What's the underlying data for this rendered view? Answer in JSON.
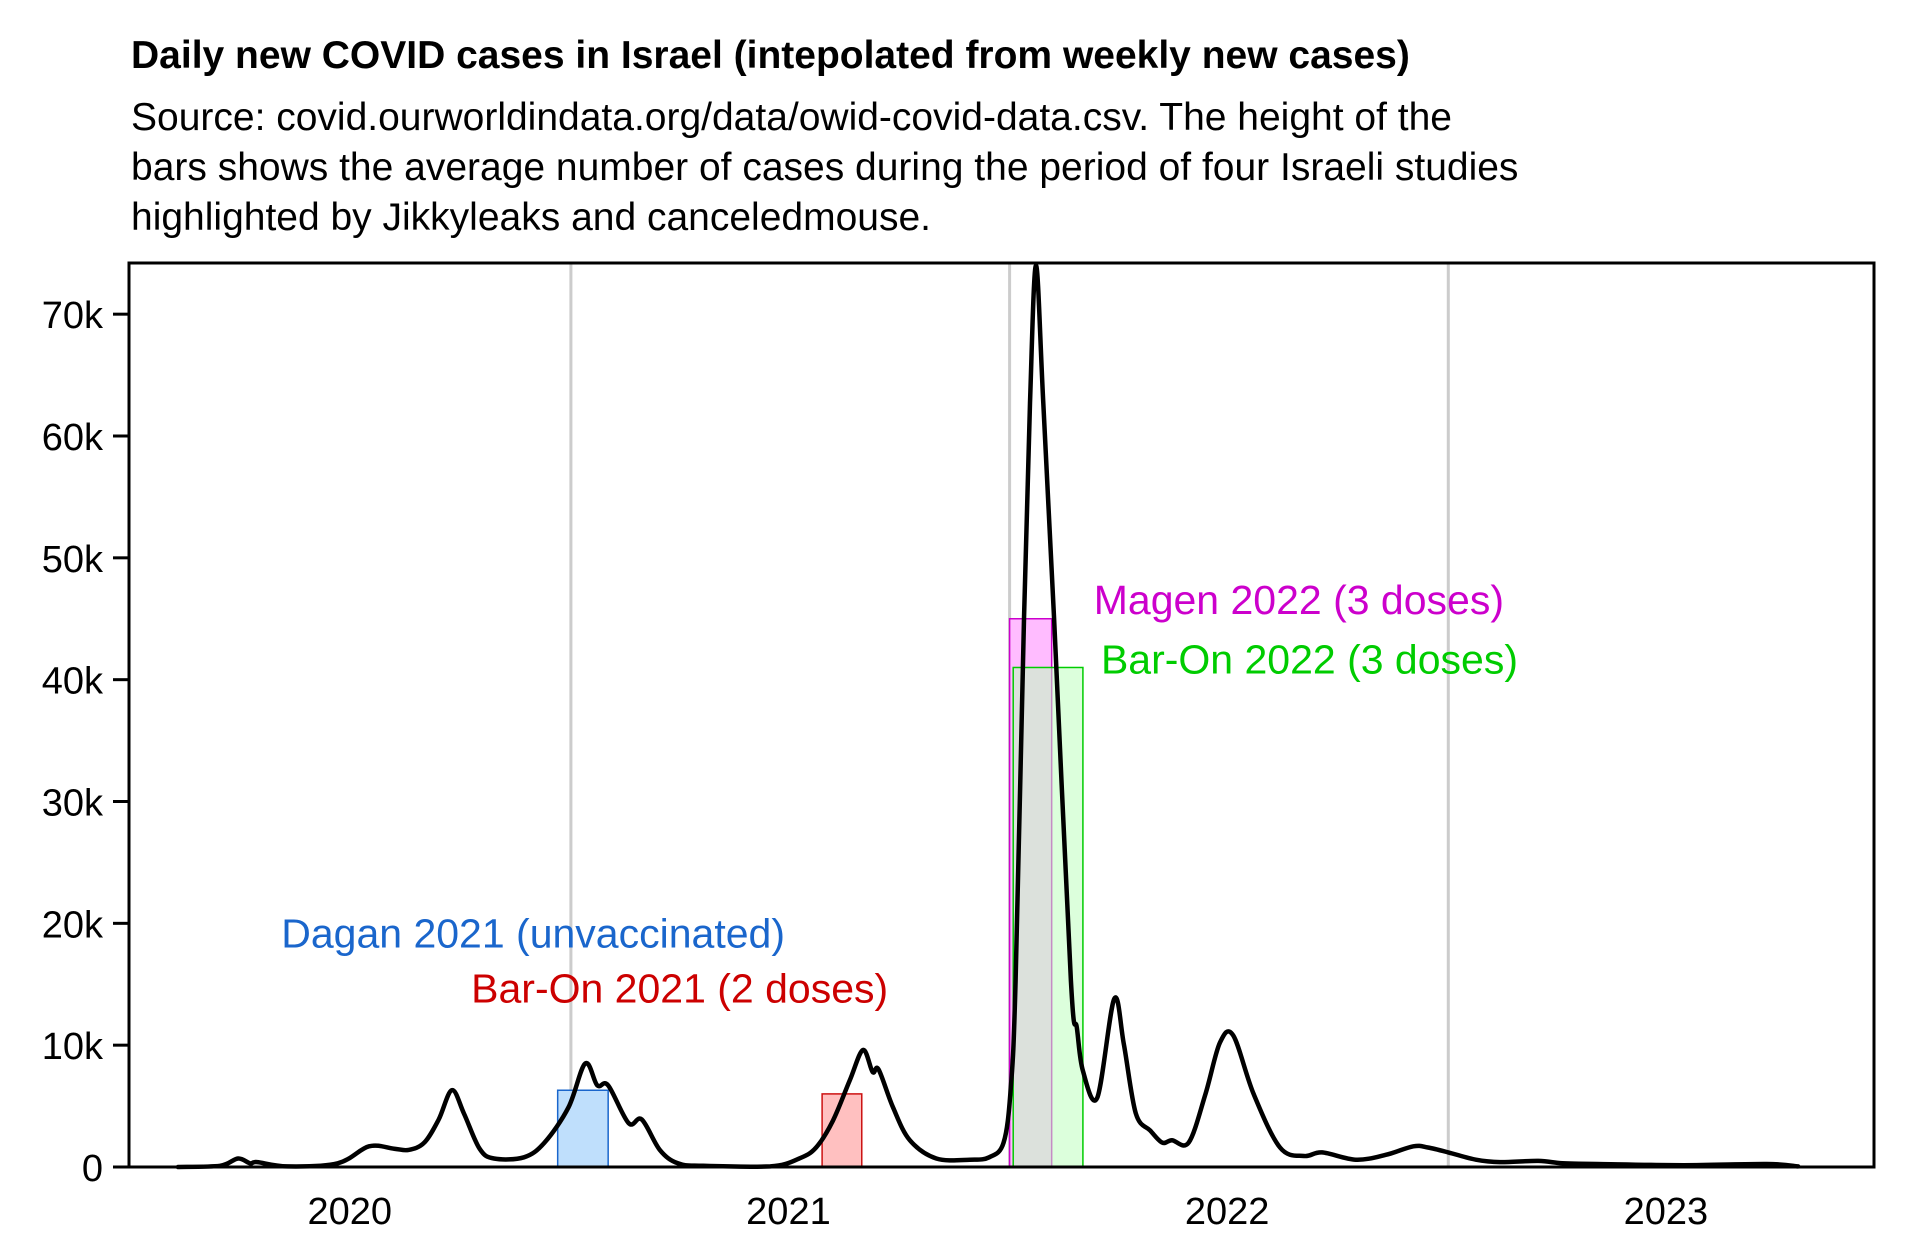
{
  "chart_data": {
    "type": "line",
    "title": "Daily new COVID cases in Israel (intepolated from weekly new cases)",
    "subtitle_lines": [
      "Source: covid.ourworldindata.org/data/owid-covid-data.csv. The height of the",
      "bars shows the average number of cases during the period of four Israeli studies",
      "highlighted by Jikkyleaks and canceledmouse."
    ],
    "xlabel": "",
    "ylabel": "",
    "xlim": [
      "2020-01-01",
      "2023-12-31"
    ],
    "ylim": [
      0,
      74200
    ],
    "grid": {
      "x": true,
      "y": false,
      "x_gridlines_at": [
        "2021-01-01",
        "2022-01-01",
        "2023-01-01"
      ]
    },
    "x_tick_labels": [
      {
        "label": "2020",
        "at": "2020-07-01"
      },
      {
        "label": "2021",
        "at": "2021-07-01"
      },
      {
        "label": "2022",
        "at": "2022-07-01"
      },
      {
        "label": "2023",
        "at": "2023-07-01"
      }
    ],
    "y_ticks": [
      0,
      10000,
      20000,
      30000,
      40000,
      50000,
      60000,
      70000
    ],
    "y_tick_labels": [
      "0",
      "10k",
      "20k",
      "30k",
      "40k",
      "50k",
      "60k",
      "70k"
    ],
    "series": [
      {
        "name": "Daily new cases",
        "color": "#000000",
        "points": [
          [
            "2020-02-09",
            0
          ],
          [
            "2020-03-15",
            100
          ],
          [
            "2020-03-30",
            700
          ],
          [
            "2020-04-09",
            300
          ],
          [
            "2020-04-15",
            400
          ],
          [
            "2020-05-10",
            50
          ],
          [
            "2020-06-21",
            300
          ],
          [
            "2020-07-17",
            1700
          ],
          [
            "2020-08-07",
            1500
          ],
          [
            "2020-08-19",
            1400
          ],
          [
            "2020-09-01",
            2000
          ],
          [
            "2020-09-13",
            3900
          ],
          [
            "2020-09-24",
            6300
          ],
          [
            "2020-10-04",
            4400
          ],
          [
            "2020-10-17",
            1500
          ],
          [
            "2020-10-29",
            700
          ],
          [
            "2020-11-23",
            800
          ],
          [
            "2020-12-10",
            2000
          ],
          [
            "2020-12-30",
            4900
          ],
          [
            "2021-01-13",
            8500
          ],
          [
            "2021-01-23",
            6700
          ],
          [
            "2021-02-01",
            6700
          ],
          [
            "2021-02-18",
            3600
          ],
          [
            "2021-03-01",
            3900
          ],
          [
            "2021-03-16",
            1400
          ],
          [
            "2021-03-31",
            300
          ],
          [
            "2021-04-21",
            100
          ],
          [
            "2021-06-16",
            50
          ],
          [
            "2021-07-10",
            700
          ],
          [
            "2021-07-24",
            1600
          ],
          [
            "2021-08-07",
            3800
          ],
          [
            "2021-08-21",
            7100
          ],
          [
            "2021-09-01",
            9600
          ],
          [
            "2021-09-09",
            7800
          ],
          [
            "2021-09-14",
            8000
          ],
          [
            "2021-09-26",
            4900
          ],
          [
            "2021-10-10",
            2200
          ],
          [
            "2021-11-01",
            700
          ],
          [
            "2021-11-29",
            600
          ],
          [
            "2021-12-15",
            800
          ],
          [
            "2021-12-27",
            2000
          ],
          [
            "2022-01-02",
            6500
          ],
          [
            "2022-01-06",
            15300
          ],
          [
            "2022-01-13",
            45000
          ],
          [
            "2022-01-18",
            62700
          ],
          [
            "2022-01-23",
            74000
          ],
          [
            "2022-01-29",
            62700
          ],
          [
            "2022-02-07",
            45000
          ],
          [
            "2022-02-21",
            15300
          ],
          [
            "2022-02-26",
            11400
          ],
          [
            "2022-03-03",
            7900
          ],
          [
            "2022-03-15",
            5700
          ],
          [
            "2022-03-29",
            13800
          ],
          [
            "2022-04-06",
            10100
          ],
          [
            "2022-04-16",
            4400
          ],
          [
            "2022-04-28",
            3000
          ],
          [
            "2022-05-08",
            2000
          ],
          [
            "2022-05-16",
            2200
          ],
          [
            "2022-05-30",
            2000
          ],
          [
            "2022-06-13",
            6000
          ],
          [
            "2022-06-25",
            10200
          ],
          [
            "2022-07-06",
            10800
          ],
          [
            "2022-07-23",
            6000
          ],
          [
            "2022-08-14",
            1600
          ],
          [
            "2022-09-03",
            900
          ],
          [
            "2022-09-18",
            1200
          ],
          [
            "2022-10-16",
            600
          ],
          [
            "2022-11-10",
            1000
          ],
          [
            "2022-12-03",
            1700
          ],
          [
            "2022-12-15",
            1600
          ],
          [
            "2023-01-01",
            1200
          ],
          [
            "2023-01-24",
            600
          ],
          [
            "2023-02-13",
            400
          ],
          [
            "2023-03-17",
            500
          ],
          [
            "2023-04-06",
            300
          ],
          [
            "2023-05-05",
            250
          ],
          [
            "2023-07-16",
            150
          ],
          [
            "2023-09-23",
            250
          ],
          [
            "2023-10-19",
            50
          ]
        ]
      }
    ],
    "bars": [
      {
        "name": "Dagan 2021 (unvaccinated)",
        "start": "2020-12-21",
        "end": "2021-02-01",
        "value": 6300,
        "fill": "#bfdffc",
        "stroke": "#1a66cc",
        "label_color": "#1a66cc"
      },
      {
        "name": "Bar-On 2021 (2 doses)",
        "start": "2021-07-29",
        "end": "2021-08-31",
        "value": 6000,
        "fill": "#ffc0c0",
        "stroke": "#cc1111",
        "label_color": "#cc0000"
      },
      {
        "name": "Magen 2022 (3 doses)",
        "start": "2022-01-01",
        "end": "2022-02-05",
        "value": 45000,
        "fill": "#ffb8ff",
        "stroke": "#cc00cc",
        "label_color": "#cc00cc",
        "alpha": 0.95
      },
      {
        "name": "Bar-On 2022 (3 doses)",
        "start": "2022-01-04",
        "end": "2022-03-03",
        "value": 41000,
        "fill": "#bfffbf",
        "stroke": "#00cc00",
        "label_color": "#00cc00",
        "alpha": 0.55
      }
    ],
    "annotations": [
      {
        "text": "Dagan 2021 (unvaccinated)",
        "at": [
          "2020-05-05",
          18000
        ],
        "color": "#1a66cc"
      },
      {
        "text": "Bar-On 2021 (2 doses)",
        "at": [
          "2020-10-10",
          13500
        ],
        "color": "#cc0000"
      },
      {
        "text": "Magen 2022 (3 doses)",
        "at": [
          "2022-03-12",
          45400
        ],
        "color": "#cc00cc"
      },
      {
        "text": "Bar-On 2022 (3 doses)",
        "at": [
          "2022-03-18",
          40500
        ],
        "color": "#00cc00"
      }
    ]
  }
}
